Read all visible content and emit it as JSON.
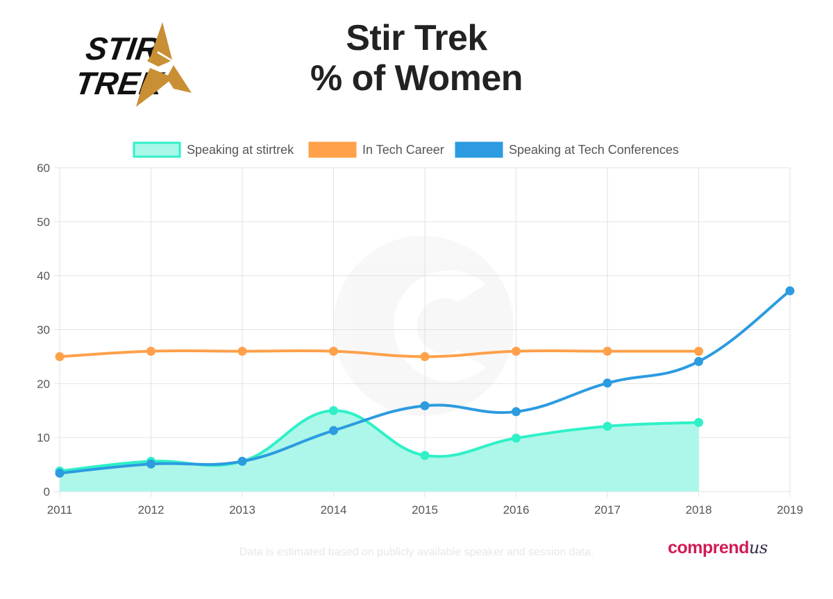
{
  "logo": {
    "line1": "STIR",
    "line2": "TREK"
  },
  "title": {
    "line1": "Stir Trek",
    "line2": "% of Women"
  },
  "footnote": "Data is estimated based on publicly available speaker and session data.",
  "brand": {
    "main": "comprend",
    "script": "us"
  },
  "colors": {
    "stirtrek": "#2ff0c8",
    "stirtrek_fill": "#a8f7e8",
    "career": "#ffa04a",
    "conferences": "#2c9be0",
    "logo_gold": "#c98f35",
    "brand": "#d01b55"
  },
  "chart_data": {
    "type": "line",
    "x": [
      "2011",
      "2012",
      "2013",
      "2014",
      "2015",
      "2016",
      "2017",
      "2018",
      "2019"
    ],
    "ylim": [
      0,
      60
    ],
    "yticks": [
      0,
      10,
      20,
      30,
      40,
      50,
      60
    ],
    "grid": true,
    "legend_position": "top",
    "series": [
      {
        "name": "Speaking at stirtrek",
        "values": [
          3.8,
          5.6,
          5.6,
          15.0,
          6.7,
          9.9,
          12.1,
          12.8,
          null
        ],
        "fill": true
      },
      {
        "name": "In Tech Career",
        "values": [
          25.0,
          26.0,
          26.0,
          26.0,
          25.0,
          26.0,
          26.0,
          26.0,
          null
        ],
        "fill": false
      },
      {
        "name": "Speaking at Tech Conferences",
        "values": [
          3.4,
          5.1,
          5.6,
          11.3,
          15.9,
          14.8,
          20.1,
          24.1,
          37.2
        ],
        "fill": false
      }
    ]
  }
}
